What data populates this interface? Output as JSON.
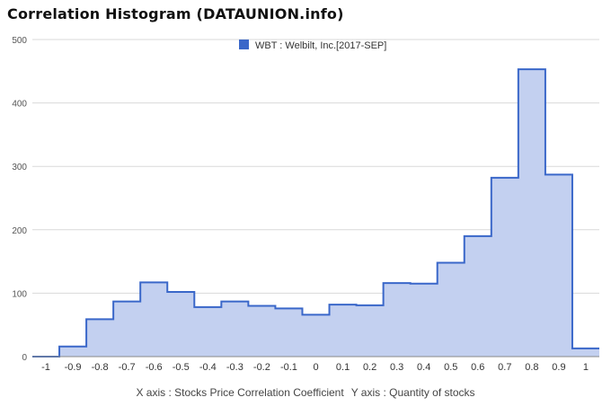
{
  "title": "Correlation Histogram (DATAUNION.info)",
  "footer": {
    "x_axis_caption": "X axis : Stocks Price Correlation Coefficient",
    "y_axis_caption": "Y axis : Quantity of stocks"
  },
  "colors": {
    "line": "#3a67c9",
    "fill": "#c3d0f0",
    "legend_swatch": "#3a67c9",
    "grid": "#d9d9d9",
    "axis": "#888888"
  },
  "chart_data": {
    "type": "area",
    "step": true,
    "legend": [
      "WBT : Welbilt, Inc.[2017-SEP]"
    ],
    "legend_position": "top-center",
    "grid": true,
    "xlim": [
      -1.05,
      1.05
    ],
    "ylim": [
      0,
      500
    ],
    "y_ticks": [
      0,
      100,
      200,
      300,
      400,
      500
    ],
    "x_tick_labels": [
      "-1",
      "-0.9",
      "-0.8",
      "-0.7",
      "-0.6",
      "-0.5",
      "-0.4",
      "-0.3",
      "-0.2",
      "-0.1",
      "0",
      "0.1",
      "0.2",
      "0.3",
      "0.4",
      "0.5",
      "0.6",
      "0.7",
      "0.8",
      "0.9",
      "1"
    ],
    "x": [
      -1,
      -0.9,
      -0.8,
      -0.7,
      -0.6,
      -0.5,
      -0.4,
      -0.3,
      -0.2,
      -0.1,
      0,
      0.1,
      0.2,
      0.3,
      0.4,
      0.5,
      0.6,
      0.7,
      0.8,
      0.9,
      1
    ],
    "series": [
      {
        "name": "WBT : Welbilt, Inc.[2017-SEP]",
        "values": [
          0,
          16,
          59,
          87,
          117,
          102,
          78,
          87,
          80,
          76,
          66,
          82,
          81,
          116,
          115,
          148,
          190,
          282,
          453,
          287,
          13
        ]
      }
    ]
  }
}
